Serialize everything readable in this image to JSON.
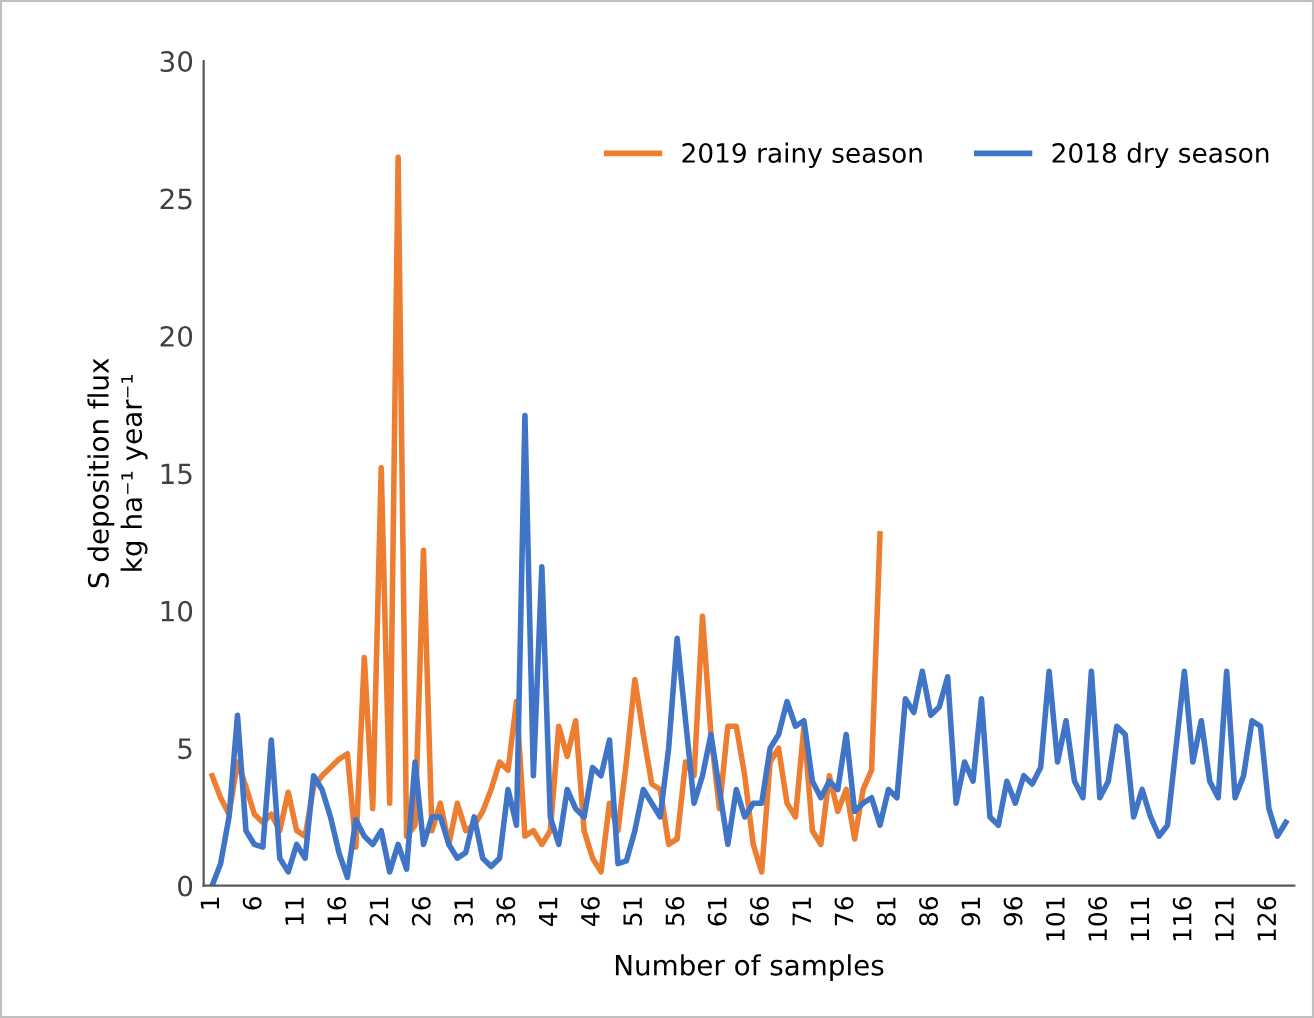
{
  "chart_data": {
    "type": "line",
    "xlabel": "Number of samples",
    "ylabel": "S deposition flux\nkg ha⁻¹ year⁻¹",
    "categories": [
      "1",
      null,
      null,
      null,
      null,
      "6",
      null,
      null,
      null,
      null,
      "11",
      null,
      null,
      null,
      null,
      "16",
      null,
      null,
      null,
      null,
      "21",
      null,
      null,
      null,
      null,
      "26",
      null,
      null,
      null,
      null,
      "31",
      null,
      null,
      null,
      null,
      "36",
      null,
      null,
      null,
      null,
      "41",
      null,
      null,
      null,
      null,
      "46",
      null,
      null,
      null,
      null,
      "51",
      null,
      null,
      null,
      null,
      "56",
      null,
      null,
      null,
      null,
      "61",
      null,
      null,
      null,
      null,
      "66",
      null,
      null,
      null,
      null,
      "71",
      null,
      null,
      null,
      null,
      "76",
      null,
      null,
      null,
      null,
      "81",
      null,
      null,
      null,
      null,
      "86",
      null,
      null,
      null,
      null,
      "91",
      null,
      null,
      null,
      null,
      "96",
      null,
      null,
      null,
      null,
      "101",
      null,
      null,
      null,
      null,
      "106",
      null,
      null,
      null,
      null,
      "111",
      null,
      null,
      null,
      null,
      "116",
      null,
      null,
      null,
      null,
      "121",
      null,
      null,
      null,
      null,
      "126",
      null,
      null
    ],
    "series": [
      {
        "name": "2019 rainy season",
        "color": "#ed7d31",
        "values": [
          4.0,
          3.2,
          2.6,
          4.5,
          3.6,
          2.6,
          2.3,
          2.6,
          2.0,
          3.4,
          2.0,
          1.8,
          3.6,
          4.0,
          4.3,
          4.6,
          4.8,
          1.4,
          8.3,
          2.8,
          15.2,
          3.0,
          26.5,
          1.8,
          2.2,
          12.2,
          2.0,
          3.0,
          1.5,
          3.0,
          2.0,
          2.2,
          2.7,
          3.5,
          4.5,
          4.2,
          6.7,
          1.8,
          2.0,
          1.5,
          2.0,
          5.8,
          4.7,
          6.0,
          2.0,
          1.0,
          0.5,
          3.0,
          2.0,
          4.5,
          7.5,
          5.5,
          3.7,
          3.5,
          1.5,
          1.7,
          4.5,
          4.0,
          9.8,
          5.5,
          2.8,
          5.8,
          5.8,
          4.0,
          1.5,
          0.5,
          4.5,
          5.0,
          3.0,
          2.5,
          5.8,
          2.0,
          1.5,
          4.0,
          2.7,
          3.5,
          1.7,
          3.5,
          4.2,
          12.8,
          null,
          null,
          null,
          null,
          null,
          null,
          null,
          null,
          null,
          null,
          null,
          null,
          null,
          null,
          null,
          null,
          null,
          null,
          null,
          null,
          null,
          null,
          null,
          null,
          null,
          null,
          null,
          null,
          null,
          null,
          null,
          null,
          null,
          null,
          null,
          null,
          null,
          null,
          null,
          null,
          null,
          null,
          null,
          null,
          null,
          null,
          null,
          null
        ]
      },
      {
        "name": "2018 dry season",
        "color": "#3f74c6",
        "values": [
          0,
          0.8,
          2.5,
          6.2,
          2.0,
          1.5,
          1.4,
          5.3,
          1.0,
          0.5,
          1.5,
          1.0,
          4.0,
          3.5,
          2.5,
          1.2,
          0.3,
          2.4,
          1.8,
          1.5,
          2.0,
          0.5,
          1.5,
          0.6,
          4.5,
          1.5,
          2.5,
          2.5,
          1.5,
          1.0,
          1.2,
          2.5,
          1.0,
          0.7,
          1.0,
          3.5,
          2.2,
          17.1,
          4.0,
          11.6,
          2.5,
          1.5,
          3.5,
          2.8,
          2.5,
          4.3,
          4.0,
          5.3,
          0.8,
          0.9,
          2.0,
          3.5,
          3.0,
          2.5,
          5.0,
          9.0,
          6.0,
          3.0,
          4.0,
          5.5,
          3.5,
          1.5,
          3.5,
          2.5,
          3.0,
          3.0,
          5.0,
          5.5,
          6.7,
          5.8,
          6.0,
          3.8,
          3.2,
          3.8,
          3.5,
          5.5,
          2.7,
          3.0,
          3.2,
          2.2,
          3.5,
          3.2,
          6.8,
          6.3,
          7.8,
          6.2,
          6.5,
          7.6,
          3.0,
          4.5,
          3.8,
          6.8,
          2.5,
          2.2,
          3.8,
          3.0,
          4.0,
          3.7,
          4.3,
          7.8,
          4.5,
          6.0,
          3.8,
          3.2,
          7.8,
          3.2,
          3.8,
          5.8,
          5.5,
          2.5,
          3.5,
          2.5,
          1.8,
          2.2,
          5.0,
          7.8,
          4.5,
          6.0,
          3.8,
          3.2,
          7.8,
          3.2,
          4.0,
          6.0,
          5.8,
          2.8,
          1.8,
          2.3
        ]
      }
    ],
    "ylim": [
      0,
      30
    ],
    "yticks": [
      0,
      5,
      10,
      15,
      20,
      25,
      30
    ],
    "grid": false,
    "legend": "top right",
    "marker": "none",
    "line_style": "solid"
  }
}
